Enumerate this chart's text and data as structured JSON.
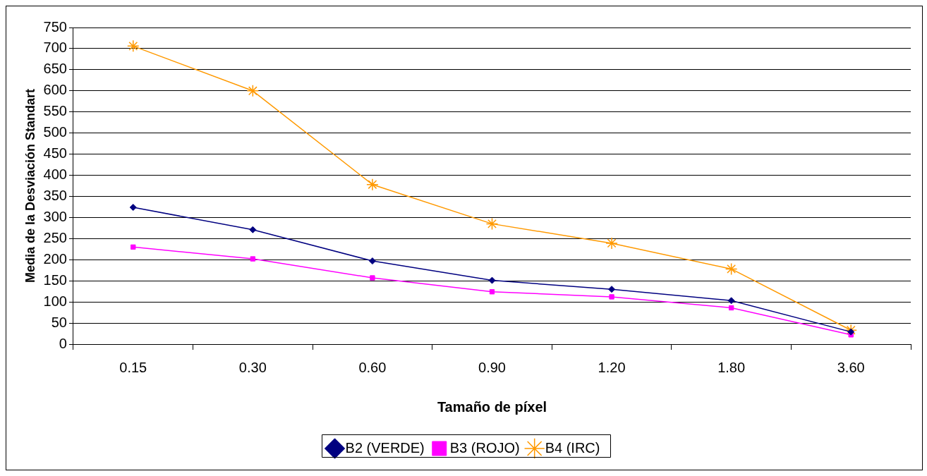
{
  "chart_data": {
    "type": "line",
    "xlabel": "Tamaño de píxel",
    "ylabel": "Media de la Desviación Standart",
    "categories": [
      "0.15",
      "0.30",
      "0.60",
      "0.90",
      "1.20",
      "1.80",
      "3.60"
    ],
    "series": [
      {
        "name": "B2 (VERDE)",
        "color": "#000080",
        "marker": "diamond",
        "values": [
          324,
          271,
          197,
          151,
          130,
          103,
          29
        ]
      },
      {
        "name": "B3 (ROJO)",
        "color": "#ff00ff",
        "marker": "square",
        "values": [
          230,
          202,
          157,
          124,
          112,
          86,
          22
        ]
      },
      {
        "name": "B4 (IRC)",
        "color": "#ff9900",
        "marker": "cross",
        "values": [
          706,
          600,
          378,
          285,
          239,
          178,
          33
        ]
      }
    ],
    "ylim": [
      0,
      750
    ],
    "yticks": [
      0,
      50,
      100,
      150,
      200,
      250,
      300,
      350,
      400,
      450,
      500,
      550,
      600,
      650,
      700,
      750
    ],
    "grid": "y",
    "legend": "bottom",
    "line_style": "solid"
  }
}
